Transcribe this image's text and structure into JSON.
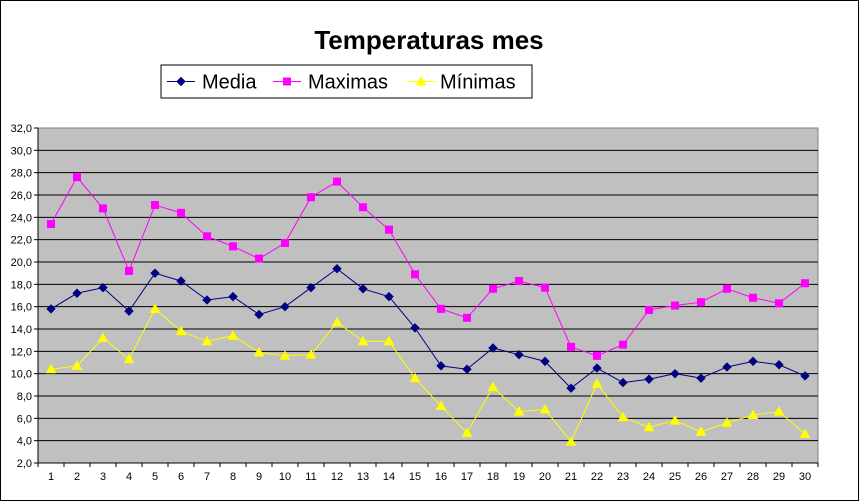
{
  "chart_data": {
    "type": "line",
    "title": "Temperaturas mes",
    "xlabel": "",
    "ylabel": "",
    "categories": [
      "1",
      "2",
      "3",
      "4",
      "5",
      "6",
      "7",
      "8",
      "9",
      "10",
      "11",
      "12",
      "13",
      "14",
      "15",
      "16",
      "17",
      "18",
      "19",
      "20",
      "21",
      "22",
      "23",
      "24",
      "25",
      "26",
      "27",
      "28",
      "29",
      "30"
    ],
    "y_ticks": [
      "2,0",
      "4,0",
      "6,0",
      "8,0",
      "10,0",
      "12,0",
      "14,0",
      "16,0",
      "18,0",
      "20,0",
      "22,0",
      "24,0",
      "26,0",
      "28,0",
      "30,0",
      "32,0"
    ],
    "ylim": [
      2,
      32
    ],
    "grid": true,
    "legend_position": "top",
    "plot_background": "#c0c0c0",
    "series": [
      {
        "name": "Media",
        "color": "#000080",
        "marker": "diamond",
        "values": [
          15.8,
          17.2,
          17.7,
          15.6,
          19.0,
          18.3,
          16.6,
          16.9,
          15.3,
          16.0,
          17.7,
          19.4,
          17.6,
          16.9,
          14.1,
          10.7,
          10.4,
          12.3,
          11.7,
          11.1,
          8.7,
          10.5,
          9.2,
          9.5,
          10.0,
          9.6,
          10.6,
          11.1,
          10.8,
          9.8
        ]
      },
      {
        "name": "Maximas",
        "color": "#ff00ff",
        "marker": "square",
        "values": [
          23.4,
          27.6,
          24.8,
          19.2,
          25.1,
          24.4,
          22.3,
          21.4,
          20.3,
          21.7,
          25.8,
          27.2,
          24.9,
          22.9,
          18.9,
          15.8,
          15.0,
          17.6,
          18.3,
          17.7,
          12.4,
          11.6,
          12.6,
          15.7,
          16.1,
          16.4,
          17.6,
          16.8,
          16.3,
          18.1
        ]
      },
      {
        "name": "Mínimas",
        "color": "#ffff00",
        "marker": "triangle",
        "values": [
          10.4,
          10.7,
          13.2,
          11.3,
          15.8,
          13.8,
          12.9,
          13.4,
          11.9,
          11.6,
          11.7,
          14.6,
          12.9,
          12.9,
          9.6,
          7.1,
          4.7,
          8.8,
          6.6,
          6.8,
          3.9,
          9.1,
          6.1,
          5.2,
          5.8,
          4.8,
          5.6,
          6.3,
          6.6,
          4.6
        ]
      }
    ]
  }
}
